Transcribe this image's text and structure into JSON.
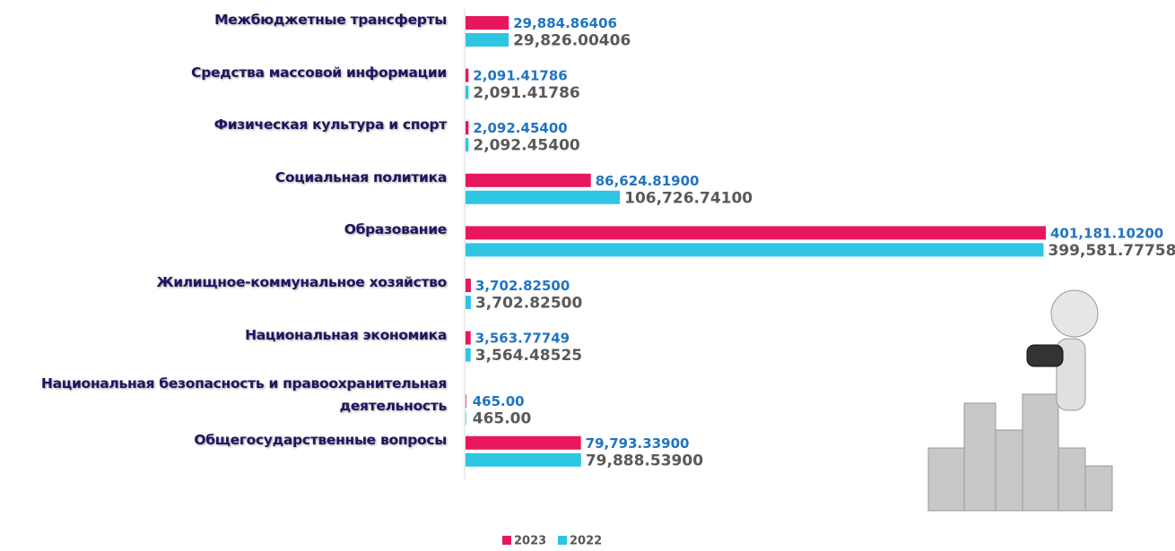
{
  "chart_data": {
    "type": "bar",
    "orientation": "horizontal",
    "categories": [
      "Межбюджетные трансферты",
      "Средства массовой информации",
      "Физическая культура и спорт",
      "Социальная политика",
      "Образование",
      "Жилищное-коммунальное хозяйство",
      "Национальная экономика",
      "Национальная безопасность и правоохранительная деятельность",
      "Общегосударственные вопросы"
    ],
    "series": [
      {
        "name": "2023",
        "color": "#e8175d",
        "values": [
          29884.86406,
          2091.41786,
          2092.454,
          86624.819,
          401181.102,
          3702.825,
          3563.77749,
          465,
          79793.339
        ],
        "value_labels": [
          "29,884.86406",
          "2,091.41786",
          "2,092.45400",
          "86,624.81900",
          "401,181.10200",
          "3,702.82500",
          "3,563.77749",
          "465.00",
          "79,793.33900"
        ]
      },
      {
        "name": "2022",
        "color": "#2ec5e3",
        "values": [
          29826.00406,
          2091.41786,
          2092.454,
          106726.741,
          399581.77758,
          3702.825,
          3564.48525,
          465,
          79888.539
        ],
        "value_labels": [
          "29,826.00406",
          "2,091.41786",
          "2,092.45400",
          "106,726.74100",
          "399,581.77758",
          "3,702.82500",
          "3,564.48525",
          "465.00",
          "79,888.53900"
        ]
      }
    ],
    "legend": "bottom"
  }
}
